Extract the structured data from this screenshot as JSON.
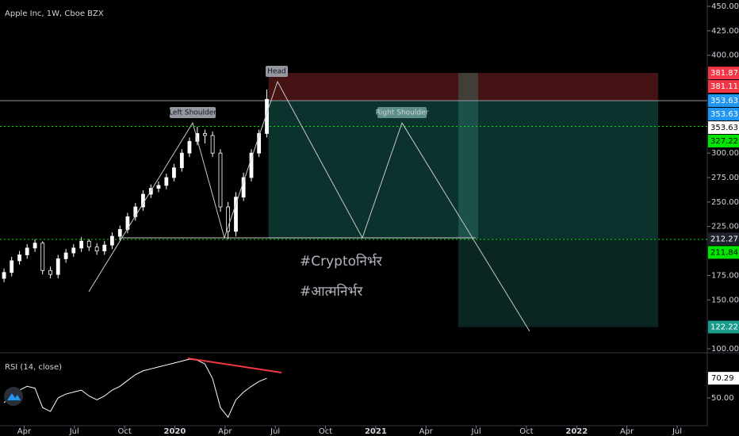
{
  "chart_data": {
    "type": "candlestick",
    "title": "Apple Inc, 1W, Cboe BZX",
    "x": [
      2019.15,
      2019.188,
      2019.227,
      2019.265,
      2019.304,
      2019.342,
      2019.381,
      2019.419,
      2019.458,
      2019.496,
      2019.535,
      2019.573,
      2019.612,
      2019.65,
      2019.688,
      2019.727,
      2019.765,
      2019.804,
      2019.842,
      2019.881,
      2019.919,
      2019.958,
      2019.996,
      2020.035,
      2020.073,
      2020.112,
      2020.15,
      2020.188,
      2020.227,
      2020.265,
      2020.304,
      2020.342,
      2020.381,
      2020.419,
      2020.458
    ],
    "open": [
      172,
      178,
      190,
      196,
      203,
      208,
      180,
      176,
      192,
      198,
      203,
      210,
      204,
      200,
      206,
      215,
      222,
      235,
      245,
      258,
      264,
      267,
      275,
      285,
      300,
      312,
      320,
      318,
      300,
      245,
      220,
      255,
      275,
      300,
      320
    ],
    "close": [
      178,
      190,
      196,
      203,
      208,
      180,
      176,
      192,
      198,
      203,
      210,
      204,
      200,
      206,
      215,
      222,
      235,
      245,
      258,
      264,
      267,
      275,
      285,
      300,
      312,
      320,
      318,
      300,
      245,
      220,
      255,
      275,
      300,
      320,
      355
    ],
    "high": [
      182,
      194,
      200,
      207,
      212,
      210,
      184,
      196,
      202,
      207,
      214,
      212,
      208,
      210,
      219,
      226,
      239,
      249,
      262,
      268,
      271,
      279,
      289,
      304,
      316,
      327,
      324,
      322,
      304,
      250,
      260,
      280,
      304,
      324,
      365
    ],
    "low": [
      168,
      174,
      186,
      192,
      199,
      176,
      172,
      172,
      188,
      194,
      199,
      200,
      196,
      196,
      202,
      211,
      218,
      231,
      241,
      254,
      260,
      263,
      271,
      281,
      296,
      308,
      310,
      296,
      240,
      212,
      215,
      251,
      271,
      296,
      316
    ],
    "up_color": "#ffffff",
    "down_color": "#000000",
    "xlim": [
      2019.13,
      2022.65
    ],
    "xticks": [
      {
        "value": 2019.25,
        "label": "Apr"
      },
      {
        "value": 2019.5,
        "label": "Jul"
      },
      {
        "value": 2019.75,
        "label": "Oct"
      },
      2020,
      {
        "value": 2020.25,
        "label": "Apr"
      },
      {
        "value": 2020.5,
        "label": "Jul"
      },
      {
        "value": 2020.75,
        "label": "Oct"
      },
      2021,
      {
        "value": 2021.25,
        "label": "Apr"
      },
      {
        "value": 2021.5,
        "label": "Jul"
      },
      {
        "value": 2021.75,
        "label": "Oct"
      },
      2022,
      {
        "value": 2022.25,
        "label": "Apr"
      },
      {
        "value": 2022.5,
        "label": "Jul"
      }
    ],
    "ylim": [
      100,
      450
    ],
    "yticks": [
      {
        "value": 450,
        "label": "450.00"
      },
      {
        "value": 425,
        "label": "425.00"
      },
      {
        "value": 400,
        "label": "400.00"
      },
      {
        "value": 300,
        "label": "300.00"
      },
      {
        "value": 275,
        "label": "275.00"
      },
      {
        "value": 250,
        "label": "250.00"
      },
      {
        "value": 225,
        "label": "225.00"
      },
      {
        "value": 175,
        "label": "175.00"
      },
      {
        "value": 150,
        "label": "150.00"
      },
      {
        "value": 100,
        "label": "100.00"
      }
    ],
    "price_labels": [
      {
        "value": 381.87,
        "color": "#f23645",
        "text_color": "#ffffff"
      },
      {
        "value": 381.11,
        "color": "#f23645",
        "text_color": "#ffffff"
      },
      {
        "value": 353.63,
        "color": "#2196f3",
        "text_color": "#ffffff"
      },
      {
        "value": 353.63,
        "color": "#2196f3",
        "text_color": "#ffffff"
      },
      {
        "value": 353.63,
        "color": "#ffffff",
        "text_color": "#000000"
      },
      {
        "value": 327.22,
        "color": "#00e600",
        "text_color": "#000000"
      },
      {
        "value": 212.27,
        "color": "#1e222d",
        "text_color": "#ffffff"
      },
      {
        "value": 211.84,
        "color": "#00e600",
        "text_color": "#000000"
      },
      {
        "value": 122.22,
        "color": "#1a9c8c",
        "text_color": "#ffffff"
      }
    ],
    "annotations": [
      "Left Shoulder",
      "Head",
      "Right Shoulder",
      "#Cryptoनिर्भर",
      "#आत्मनिर्भर"
    ],
    "rsi": {
      "title": "RSI (14, close)",
      "color": "#ffffff",
      "values": [
        45,
        52,
        58,
        62,
        60,
        40,
        36,
        50,
        54,
        56,
        58,
        52,
        48,
        52,
        58,
        62,
        68,
        74,
        78,
        80,
        82,
        84,
        86,
        88,
        90,
        89,
        85,
        70,
        40,
        30,
        48,
        56,
        62,
        67,
        70.29
      ],
      "ylim": [
        27,
        95
      ],
      "yticks": [
        {
          "value": 50,
          "label": "50.00"
        }
      ],
      "last": 70.29
    }
  }
}
